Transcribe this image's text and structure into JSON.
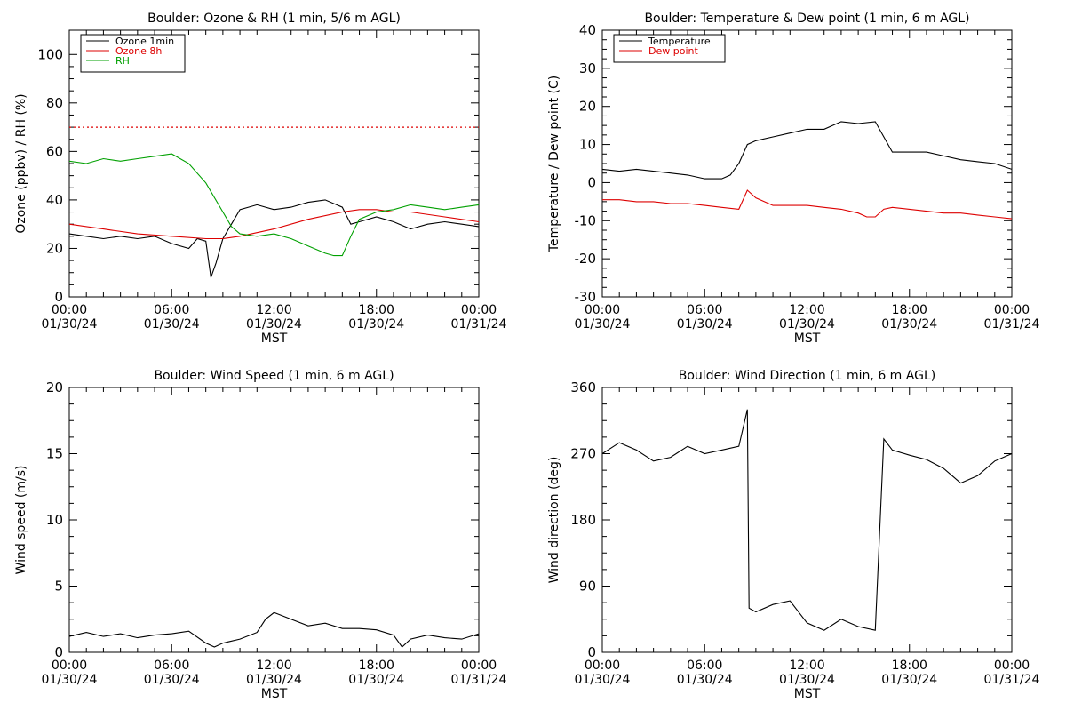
{
  "x_axis": {
    "ticks": [
      {
        "time": "00:00",
        "date": "01/30/24"
      },
      {
        "time": "06:00",
        "date": "01/30/24"
      },
      {
        "time": "12:00",
        "date": "01/30/24"
      },
      {
        "time": "18:00",
        "date": "01/30/24"
      },
      {
        "time": "00:00",
        "date": "01/31/24"
      }
    ],
    "label": "MST"
  },
  "chart_data": [
    {
      "id": "ozone",
      "type": "line",
      "title": "Boulder: Ozone & RH (1 min, 5/6 m AGL)",
      "ylabel": "Ozone (ppbv) / RH (%)",
      "xlim": [
        0,
        24
      ],
      "ylim": [
        0,
        110
      ],
      "yticks": [
        0,
        20,
        40,
        60,
        80,
        100
      ],
      "hline": {
        "y": 70,
        "color": "#dd0000",
        "style": "dotted"
      },
      "legend_position": "top-left",
      "series": [
        {
          "name": "Ozone 1min",
          "color": "#000000",
          "x": [
            0,
            1,
            2,
            3,
            4,
            5,
            6,
            7,
            7.5,
            8,
            8.3,
            8.6,
            9,
            9.5,
            10,
            10.5,
            11,
            12,
            13,
            14,
            15,
            16,
            16.5,
            17,
            18,
            19,
            20,
            21,
            22,
            23,
            24
          ],
          "y": [
            26,
            25,
            24,
            25,
            24,
            25,
            22,
            20,
            24,
            23,
            8,
            14,
            24,
            30,
            36,
            37,
            38,
            36,
            37,
            39,
            40,
            37,
            30,
            31,
            33,
            31,
            28,
            30,
            31,
            30,
            29
          ]
        },
        {
          "name": "Ozone 8h",
          "color": "#dd0000",
          "x": [
            0,
            2,
            4,
            6,
            8,
            9,
            10,
            12,
            14,
            16,
            17,
            18,
            19,
            20,
            22,
            24
          ],
          "y": [
            30,
            28,
            26,
            25,
            24,
            24,
            25,
            28,
            32,
            35,
            36,
            36,
            35,
            35,
            33,
            31
          ]
        },
        {
          "name": "RH",
          "color": "#00a000",
          "x": [
            0,
            1,
            2,
            3,
            4,
            5,
            6,
            7,
            8,
            9,
            9.5,
            10,
            11,
            12,
            13,
            14,
            15,
            15.5,
            16,
            16.5,
            17,
            18,
            19,
            20,
            21,
            22,
            23,
            24
          ],
          "y": [
            56,
            55,
            57,
            56,
            57,
            58,
            59,
            55,
            47,
            35,
            29,
            26,
            25,
            26,
            24,
            21,
            18,
            17,
            17,
            25,
            32,
            35,
            36,
            38,
            37,
            36,
            37,
            38
          ]
        }
      ]
    },
    {
      "id": "temp",
      "type": "line",
      "title": "Boulder: Temperature & Dew point (1 min, 6 m AGL)",
      "ylabel": "Temperature / Dew point (C)",
      "xlim": [
        0,
        24
      ],
      "ylim": [
        -30,
        40
      ],
      "yticks": [
        -30,
        -20,
        -10,
        0,
        10,
        20,
        30,
        40
      ],
      "legend_position": "top-left",
      "series": [
        {
          "name": "Temperature",
          "color": "#000000",
          "x": [
            0,
            1,
            2,
            3,
            4,
            5,
            6,
            7,
            7.5,
            8,
            8.5,
            9,
            10,
            11,
            12,
            13,
            14,
            15,
            16,
            16.5,
            17,
            18,
            19,
            20,
            21,
            22,
            23,
            24
          ],
          "y": [
            3.5,
            3,
            3.5,
            3,
            2.5,
            2,
            1,
            1,
            2,
            5,
            10,
            11,
            12,
            13,
            14,
            14,
            16,
            15.5,
            16,
            12,
            8,
            8,
            8,
            7,
            6,
            5.5,
            5,
            3.5
          ]
        },
        {
          "name": "Dew point",
          "color": "#dd0000",
          "x": [
            0,
            1,
            2,
            3,
            4,
            5,
            6,
            7,
            8,
            8.5,
            9,
            10,
            11,
            12,
            13,
            14,
            15,
            15.5,
            16,
            16.5,
            17,
            18,
            19,
            20,
            21,
            22,
            23,
            24
          ],
          "y": [
            -4.5,
            -4.5,
            -5,
            -5,
            -5.5,
            -5.5,
            -6,
            -6.5,
            -7,
            -2,
            -4,
            -6,
            -6,
            -6,
            -6.5,
            -7,
            -8,
            -9,
            -9,
            -7,
            -6.5,
            -7,
            -7.5,
            -8,
            -8,
            -8.5,
            -9,
            -9.5
          ]
        }
      ]
    },
    {
      "id": "wspd",
      "type": "line",
      "title": "Boulder: Wind Speed (1 min, 6 m AGL)",
      "ylabel": "Wind speed (m/s)",
      "xlim": [
        0,
        24
      ],
      "ylim": [
        0,
        20
      ],
      "yticks": [
        0,
        5,
        10,
        15,
        20
      ],
      "series": [
        {
          "name": "",
          "color": "#000000",
          "x": [
            0,
            1,
            2,
            3,
            4,
            5,
            6,
            7,
            8,
            8.5,
            9,
            10,
            11,
            11.5,
            12,
            13,
            14,
            15,
            16,
            17,
            18,
            19,
            19.5,
            20,
            21,
            22,
            23,
            24
          ],
          "y": [
            1.2,
            1.5,
            1.2,
            1.4,
            1.1,
            1.3,
            1.4,
            1.6,
            0.7,
            0.4,
            0.7,
            1,
            1.5,
            2.5,
            3,
            2.5,
            2,
            2.2,
            1.8,
            1.8,
            1.7,
            1.3,
            0.4,
            1,
            1.3,
            1.1,
            1,
            1.4
          ]
        }
      ]
    },
    {
      "id": "wdir",
      "type": "line",
      "title": "Boulder: Wind Direction (1 min, 6 m AGL)",
      "ylabel": "Wind direction (deg)",
      "xlim": [
        0,
        24
      ],
      "ylim": [
        0,
        360
      ],
      "yticks": [
        0,
        90,
        180,
        270,
        360
      ],
      "series": [
        {
          "name": "",
          "color": "#000000",
          "x": [
            0,
            1,
            2,
            3,
            4,
            5,
            6,
            7,
            8,
            8.5,
            8.6,
            9,
            10,
            11,
            12,
            13,
            14,
            15,
            16,
            16.5,
            17,
            18,
            19,
            20,
            21,
            22,
            23,
            24
          ],
          "y": [
            270,
            285,
            275,
            260,
            265,
            280,
            270,
            275,
            280,
            330,
            60,
            55,
            65,
            70,
            40,
            30,
            45,
            35,
            30,
            290,
            275,
            268,
            262,
            250,
            230,
            240,
            260,
            270
          ]
        }
      ]
    }
  ]
}
